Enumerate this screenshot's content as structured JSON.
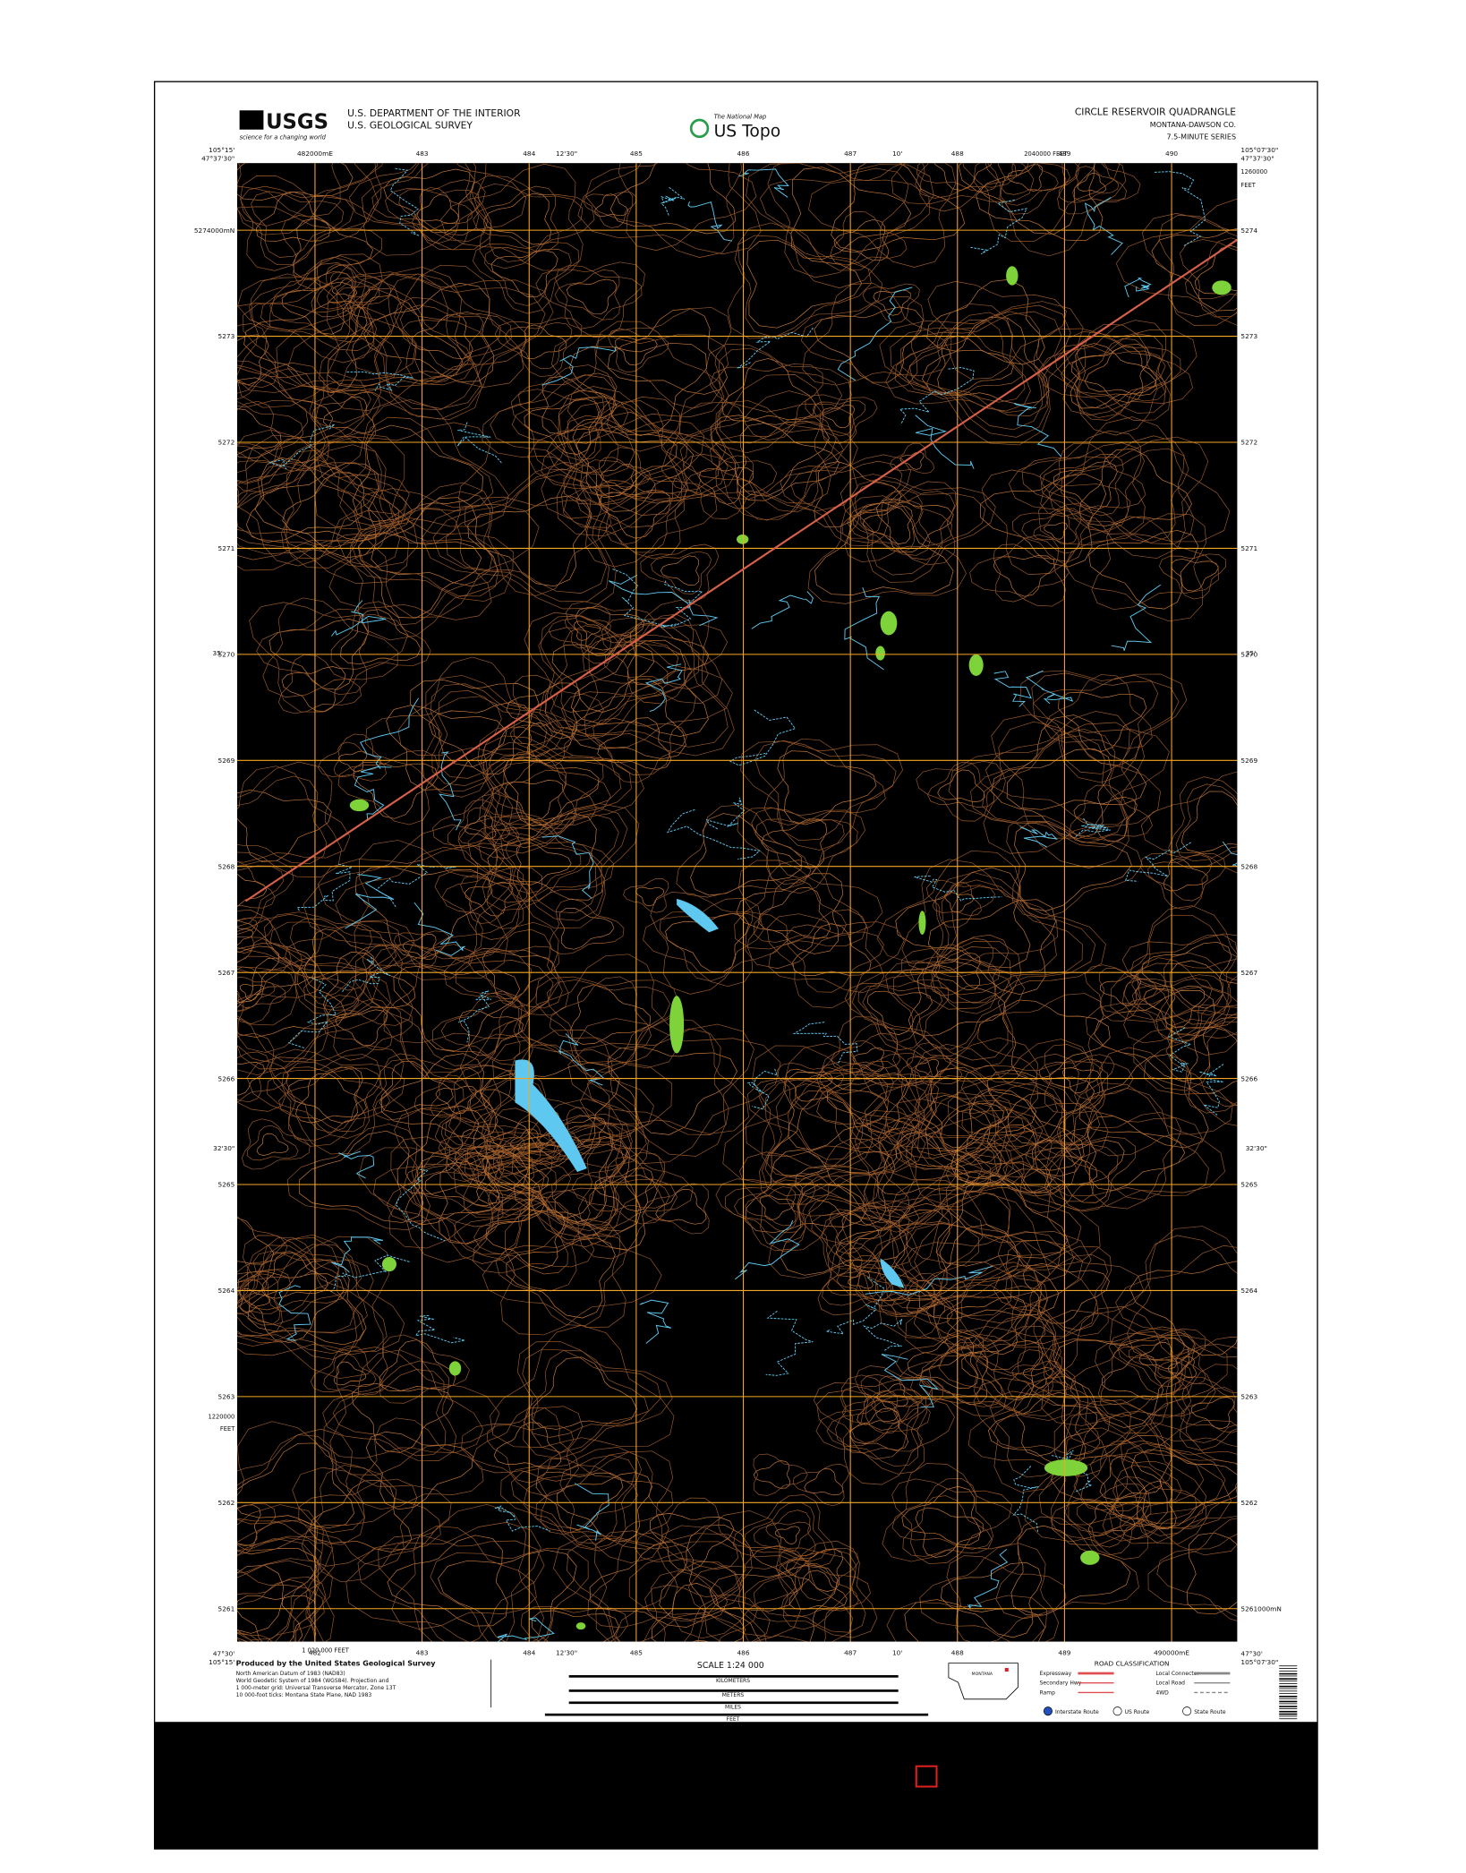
{
  "header": {
    "logo": "USGS",
    "tagline": "science for a changing world",
    "agency": "U.S. DEPARTMENT OF THE INTERIOR",
    "bureau": "U.S. GEOLOGICAL SURVEY",
    "program_top": "The National Map",
    "program": "US Topo",
    "title": "CIRCLE RESERVOIR QUADRANGLE",
    "location": "MONTANA-DAWSON CO.",
    "series": "7.5-MINUTE SERIES"
  },
  "map": {
    "corners": {
      "west": "105°15'",
      "north": "47°37'30\"",
      "east": "105°07'30\"",
      "south": "47°30'"
    },
    "top_labels": {
      "mid_west": "12'30\"",
      "mid_east": "10'",
      "feet_east": "2040000 FEET",
      "feet_north": "1260000",
      "feet_unit": "FEET"
    },
    "left_labels": {
      "upper": "35'",
      "lower": "32'30\"",
      "feet": "1220000",
      "feet_unit": "FEET"
    },
    "bottom_labels": {
      "feet_west": "1 020 000 FEET",
      "mid_west": "12'30\"",
      "mid_east": "10'"
    },
    "top_eastings": [
      "482000mE",
      "483",
      "484",
      "485",
      "486",
      "487",
      "488",
      "489",
      "490"
    ],
    "bottom_eastings": [
      "482",
      "483",
      "484",
      "485",
      "486",
      "487",
      "488",
      "489",
      "490000mE"
    ],
    "left_northings": [
      "5274000mN",
      "5273",
      "5272",
      "5271",
      "5270",
      "5269",
      "5268",
      "5267",
      "5266",
      "5265",
      "5264",
      "5263",
      "5262",
      "5261"
    ],
    "right_northings": [
      "5274",
      "5273",
      "5272",
      "5271",
      "5270",
      "5269",
      "5268",
      "5267",
      "5266",
      "5265",
      "5264",
      "5263",
      "5262",
      "5261000mN"
    ]
  },
  "footer": {
    "producer": "Produced by the United States Geological Survey",
    "datum_notes": [
      "North American Datum of 1983 (NAD83)",
      "World Geodetic System of 1984 (WGS84). Projection and",
      "1 000-meter grid: Universal Transverse Mercator, Zone 13T",
      "10 000-foot ticks: Montana State Plane, NAD 1983"
    ],
    "scale": "SCALE 1:24 000",
    "kilometers": "KILOMETERS",
    "meters": "METERS",
    "miles": "MILES",
    "feet": "FEET",
    "inset": "MONTANA",
    "road_title": "ROAD CLASSIFICATION",
    "roads": [
      "Expressway",
      "Secondary Hwy",
      "Ramp",
      "Local Connector",
      "Local Road",
      "4WD"
    ],
    "routes": [
      "Interstate Route",
      "US Route",
      "State Route"
    ]
  }
}
